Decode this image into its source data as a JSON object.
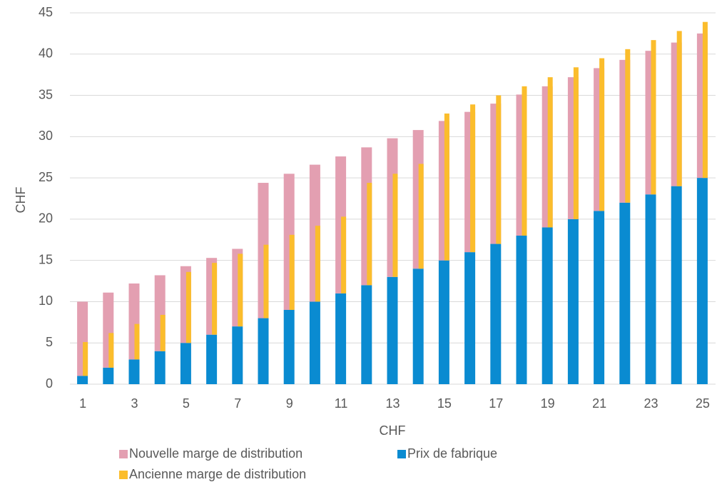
{
  "chart_data": {
    "type": "bar",
    "x_label": "CHF",
    "y_label": "CHF",
    "categories": [
      "1",
      null,
      "3",
      null,
      "5",
      null,
      "7",
      null,
      "9",
      null,
      "11",
      null,
      "13",
      null,
      "15",
      null,
      "17",
      null,
      "19",
      null,
      "21",
      null,
      "23",
      null,
      "25"
    ],
    "series": [
      {
        "name": "Nouvelle marge de distribution",
        "color": "#e39fb1",
        "values": [
          9.0,
          9.1,
          9.2,
          9.2,
          9.3,
          9.3,
          9.4,
          16.4,
          16.5,
          16.6,
          16.6,
          16.7,
          16.8,
          16.8,
          16.9,
          17.0,
          17.0,
          17.1,
          17.1,
          17.2,
          17.3,
          17.3,
          17.4,
          17.4,
          17.5
        ]
      },
      {
        "name": "Prix de fabrique",
        "color": "#0a8bd1",
        "values": [
          1,
          2,
          3,
          4,
          5,
          6,
          7,
          8,
          9,
          10,
          11,
          12,
          13,
          14,
          15,
          16,
          17,
          18,
          19,
          20,
          21,
          22,
          23,
          24,
          25
        ]
      },
      {
        "name": "Ancienne marge de distribution",
        "color": "#fbbd2c",
        "values": [
          4.1,
          4.2,
          4.3,
          4.4,
          8.6,
          8.7,
          8.8,
          8.9,
          9.1,
          9.2,
          9.3,
          12.4,
          12.5,
          12.7,
          17.8,
          17.9,
          18.0,
          18.1,
          18.2,
          18.4,
          18.5,
          18.6,
          18.7,
          18.8,
          18.9
        ]
      }
    ],
    "ylim": [
      0,
      45
    ],
    "yticks": [
      0,
      5,
      10,
      15,
      20,
      25,
      30,
      35,
      40,
      45
    ],
    "grid": true
  }
}
